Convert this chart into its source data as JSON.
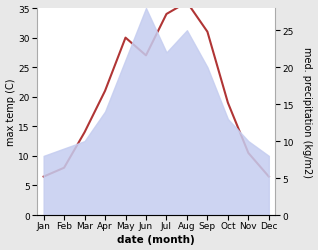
{
  "months": [
    "Jan",
    "Feb",
    "Mar",
    "Apr",
    "May",
    "Jun",
    "Jul",
    "Aug",
    "Sep",
    "Oct",
    "Nov",
    "Dec"
  ],
  "temp": [
    6.5,
    8.0,
    14.0,
    21.0,
    30.0,
    27.0,
    34.0,
    36.0,
    31.0,
    19.0,
    10.5,
    6.5
  ],
  "precip": [
    8.0,
    9.0,
    10.0,
    14.0,
    21.0,
    28.0,
    22.0,
    25.0,
    20.0,
    13.0,
    10.0,
    8.0
  ],
  "temp_color": "#b03535",
  "precip_fill_color": "#c5cdf0",
  "precip_fill_alpha": 0.85,
  "temp_ylim": [
    0,
    35
  ],
  "temp_yticks": [
    0,
    5,
    10,
    15,
    20,
    25,
    30,
    35
  ],
  "precip_ylim": [
    0,
    28
  ],
  "precip_yticks": [
    0,
    5,
    10,
    15,
    20,
    25
  ],
  "xlabel": "date (month)",
  "ylabel_left": "max temp (C)",
  "ylabel_right": "med. precipitation (kg/m2)",
  "bg_color": "#e8e8e8",
  "plot_bg_color": "#ffffff",
  "title_fontsize": 7,
  "label_fontsize": 7,
  "tick_fontsize": 6.5,
  "line_width": 1.5
}
